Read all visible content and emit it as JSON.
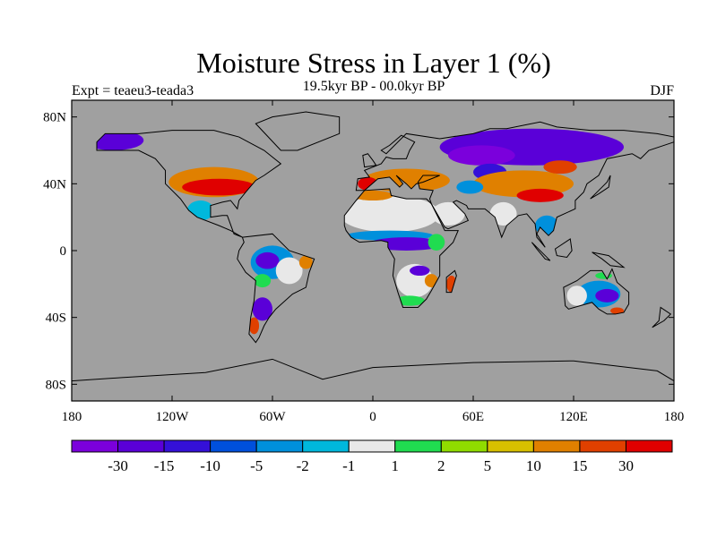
{
  "title": "Moisture Stress in Layer 1 (%)",
  "subtitle": "19.5kyr BP - 00.0kyr BP",
  "experiment": "Expt = teaeu3-teada3",
  "season": "DJF",
  "chart_data": {
    "type": "map",
    "projection": "cylindrical-equidistant",
    "lon_range": [
      -180,
      180
    ],
    "lat_range": [
      -90,
      90
    ],
    "ocean_color": "#a0a0a0",
    "x_ticks": [
      {
        "lon": -180,
        "label": "180"
      },
      {
        "lon": -120,
        "label": "120W"
      },
      {
        "lon": -60,
        "label": "60W"
      },
      {
        "lon": 0,
        "label": "0"
      },
      {
        "lon": 60,
        "label": "60E"
      },
      {
        "lon": 120,
        "label": "120E"
      },
      {
        "lon": 180,
        "label": "180"
      }
    ],
    "y_ticks": [
      {
        "lat": 80,
        "label": "80N"
      },
      {
        "lat": 40,
        "label": "40N"
      },
      {
        "lat": 0,
        "label": "0"
      },
      {
        "lat": -40,
        "label": "40S"
      },
      {
        "lat": -80,
        "label": "80S"
      }
    ],
    "colorbar": {
      "colors": [
        "#7b00dc",
        "#5a00d8",
        "#3410d8",
        "#0050dc",
        "#0090dc",
        "#00b8dc",
        "#e8e8e8",
        "#20dc50",
        "#90dc00",
        "#d8c000",
        "#e08000",
        "#e04000",
        "#e00000"
      ],
      "labels": [
        "-30",
        "-15",
        "-10",
        "-5",
        "-2",
        "-1",
        "1",
        "2",
        "5",
        "10",
        "15",
        "30"
      ]
    },
    "regions": [
      {
        "name": "US band",
        "lon": -95,
        "lat": 41,
        "rlon": 27,
        "rlat": 9,
        "cat": 10
      },
      {
        "name": "US core",
        "lon": -92,
        "lat": 38,
        "rlon": 22,
        "rlat": 5,
        "cat": 12
      },
      {
        "name": "Mexico",
        "lon": -103,
        "lat": 24,
        "rlon": 8,
        "rlat": 6,
        "cat": 5
      },
      {
        "name": "Alaska",
        "lon": -155,
        "lat": 66,
        "rlon": 18,
        "rlat": 6,
        "cat": 1
      },
      {
        "name": "Amazon",
        "lon": -60,
        "lat": -7,
        "rlon": 13,
        "rlat": 10,
        "cat": 4
      },
      {
        "name": "Amazon core",
        "lon": -63,
        "lat": -6,
        "rlon": 7,
        "rlat": 5,
        "cat": 1
      },
      {
        "name": "Brazil east",
        "lon": -50,
        "lat": -12,
        "rlon": 8,
        "rlat": 8,
        "cat": 6
      },
      {
        "name": "NE Brazil",
        "lon": -40,
        "lat": -7,
        "rlon": 4,
        "rlat": 4,
        "cat": 10
      },
      {
        "name": "Bolivia",
        "lon": -66,
        "lat": -18,
        "rlon": 5,
        "rlat": 4,
        "cat": 7
      },
      {
        "name": "Patagonia",
        "lon": -66,
        "lat": -35,
        "rlon": 6,
        "rlat": 7,
        "cat": 1
      },
      {
        "name": "Chile",
        "lon": -71,
        "lat": -45,
        "rlon": 3,
        "rlat": 5,
        "cat": 11
      },
      {
        "name": "Sahara",
        "lon": 10,
        "lat": 22,
        "rlon": 30,
        "rlat": 11,
        "cat": 6
      },
      {
        "name": "Sahel blue",
        "lon": 10,
        "lat": 9,
        "rlon": 26,
        "rlat": 3,
        "cat": 4
      },
      {
        "name": "Central Africa",
        "lon": 20,
        "lat": 4,
        "rlon": 22,
        "rlat": 4,
        "cat": 1
      },
      {
        "name": "North Africa",
        "lon": 0,
        "lat": 33,
        "rlon": 12,
        "rlat": 3,
        "cat": 10
      },
      {
        "name": "Southern Africa",
        "lon": 25,
        "lat": -18,
        "rlon": 11,
        "rlat": 10,
        "cat": 6
      },
      {
        "name": "Zambia",
        "lon": 28,
        "lat": -12,
        "rlon": 6,
        "rlat": 3,
        "cat": 1
      },
      {
        "name": "South Africa",
        "lon": 22,
        "lat": -30,
        "rlon": 9,
        "rlat": 3,
        "cat": 7
      },
      {
        "name": "Mozambique",
        "lon": 35,
        "lat": -18,
        "rlon": 4,
        "rlat": 4,
        "cat": 10
      },
      {
        "name": "East Africa",
        "lon": 38,
        "lat": 5,
        "rlon": 5,
        "rlat": 5,
        "cat": 7
      },
      {
        "name": "Madagascar",
        "lon": 47,
        "lat": -20,
        "rlon": 3,
        "rlat": 5,
        "cat": 11
      },
      {
        "name": "Europe",
        "lon": 20,
        "lat": 42,
        "rlon": 26,
        "rlat": 7,
        "cat": 10
      },
      {
        "name": "Iberia",
        "lon": -3,
        "lat": 40,
        "rlon": 6,
        "rlat": 4,
        "cat": 12
      },
      {
        "name": "Arabia",
        "lon": 45,
        "lat": 22,
        "rlon": 10,
        "rlat": 7,
        "cat": 6
      },
      {
        "name": "Siberia",
        "lon": 95,
        "lat": 62,
        "rlon": 55,
        "rlat": 11,
        "cat": 1
      },
      {
        "name": "West Siberia",
        "lon": 65,
        "lat": 57,
        "rlon": 20,
        "rlat": 6,
        "cat": 0
      },
      {
        "name": "Kazakhstan",
        "lon": 70,
        "lat": 47,
        "rlon": 10,
        "rlat": 5,
        "cat": 2
      },
      {
        "name": "Central Asia",
        "lon": 90,
        "lat": 40,
        "rlon": 30,
        "rlat": 8,
        "cat": 10
      },
      {
        "name": "Tibet",
        "lon": 100,
        "lat": 33,
        "rlon": 14,
        "rlat": 4,
        "cat": 12
      },
      {
        "name": "Iran",
        "lon": 58,
        "lat": 38,
        "rlon": 8,
        "rlat": 4,
        "cat": 4
      },
      {
        "name": "Mongolia",
        "lon": 112,
        "lat": 50,
        "rlon": 10,
        "rlat": 4,
        "cat": 11
      },
      {
        "name": "India",
        "lon": 78,
        "lat": 22,
        "rlon": 8,
        "rlat": 7,
        "cat": 6
      },
      {
        "name": "SE Asia",
        "lon": 104,
        "lat": 15,
        "rlon": 7,
        "rlat": 6,
        "cat": 4
      },
      {
        "name": "Australia",
        "lon": 135,
        "lat": -26,
        "rlon": 13,
        "rlat": 8,
        "cat": 4
      },
      {
        "name": "Australia core",
        "lon": 140,
        "lat": -27,
        "rlon": 7,
        "rlat": 4,
        "cat": 1
      },
      {
        "name": "W Australia",
        "lon": 122,
        "lat": -27,
        "rlon": 6,
        "rlat": 6,
        "cat": 6
      },
      {
        "name": "SE Australia",
        "lon": 146,
        "lat": -36,
        "rlon": 4,
        "rlat": 2,
        "cat": 11
      },
      {
        "name": "N Australia",
        "lon": 138,
        "lat": -15,
        "rlon": 5,
        "rlat": 2,
        "cat": 7
      }
    ]
  }
}
